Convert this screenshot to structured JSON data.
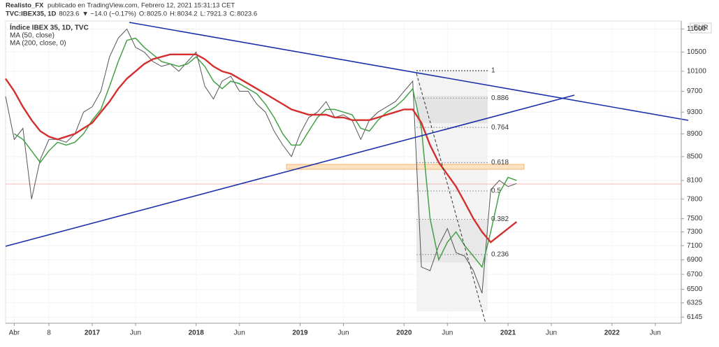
{
  "header": {
    "author": "Realisto_FX",
    "published": "publicado en TradingView.com, Febrero 12, 2021 15:31:13 CET",
    "symbol": "TVC:IBEX35, 1D",
    "last": "8023.6",
    "change": "▼ −14.0 (−0.17%)",
    "ohlc": [
      {
        "label": "O:",
        "value": "8025.0"
      },
      {
        "label": "H:",
        "value": "8034.2"
      },
      {
        "label": "L:",
        "value": "7921.3"
      },
      {
        "label": "C:",
        "value": "8023.6"
      }
    ]
  },
  "chart_data": {
    "type": "line",
    "currency": "EUR",
    "log_scale": true,
    "x": [
      "2016-03",
      "2016-04",
      "2016-05",
      "2016-06",
      "2016-07",
      "2016-08",
      "2016-09",
      "2016-10",
      "2016-11",
      "2016-12",
      "2017-01",
      "2017-02",
      "2017-03",
      "2017-04",
      "2017-05",
      "2017-06",
      "2017-07",
      "2017-08",
      "2017-09",
      "2017-10",
      "2017-11",
      "2017-12",
      "2018-01",
      "2018-02",
      "2018-03",
      "2018-04",
      "2018-05",
      "2018-06",
      "2018-07",
      "2018-08",
      "2018-09",
      "2018-10",
      "2018-11",
      "2018-12",
      "2019-01",
      "2019-02",
      "2019-03",
      "2019-04",
      "2019-05",
      "2019-06",
      "2019-07",
      "2019-08",
      "2019-09",
      "2019-10",
      "2019-11",
      "2019-12",
      "2020-01",
      "2020-02",
      "2020-03",
      "2020-04",
      "2020-05",
      "2020-06",
      "2020-07",
      "2020-08",
      "2020-09",
      "2020-10",
      "2020-11",
      "2020-12",
      "2021-01",
      "2021-02"
    ],
    "series": [
      {
        "name": "Índice IBEX 35, 1D, TVC",
        "color": "#555555",
        "values": [
          9600,
          8800,
          9000,
          7800,
          8450,
          8800,
          8800,
          8750,
          8900,
          9300,
          9400,
          9700,
          10400,
          10800,
          11000,
          10600,
          10500,
          10300,
          10200,
          10250,
          10100,
          10300,
          10500,
          9800,
          9550,
          9900,
          10000,
          9700,
          9700,
          9450,
          9300,
          8950,
          8700,
          8500,
          8900,
          9200,
          9300,
          9500,
          9200,
          9250,
          9150,
          8800,
          9150,
          9300,
          9400,
          9500,
          9700,
          9900,
          6800,
          6750,
          7100,
          7350,
          7000,
          6950,
          6750,
          6450,
          7950,
          8100,
          8000,
          8050
        ]
      },
      {
        "name": "MA (50, close)",
        "color": "#43a047",
        "values": [
          null,
          8900,
          8800,
          8600,
          8400,
          8600,
          8750,
          8700,
          8750,
          8900,
          9150,
          9350,
          9800,
          10300,
          10750,
          10800,
          10600,
          10450,
          10300,
          10250,
          10200,
          10250,
          10400,
          10200,
          9900,
          9750,
          9900,
          9850,
          9750,
          9650,
          9450,
          9200,
          8900,
          8700,
          8700,
          8950,
          9200,
          9350,
          9350,
          9300,
          9250,
          9000,
          8950,
          9150,
          9300,
          9400,
          9550,
          9750,
          9000,
          7500,
          6900,
          7150,
          7300,
          7100,
          6950,
          6800,
          7300,
          7900,
          8150,
          8100
        ]
      },
      {
        "name": "MA (200, close, 0)",
        "color": "#d32f2f",
        "values": [
          9950,
          9700,
          9400,
          9150,
          8950,
          8850,
          8800,
          8850,
          8900,
          9000,
          9100,
          9300,
          9500,
          9750,
          9950,
          10100,
          10250,
          10350,
          10400,
          10450,
          10450,
          10450,
          10450,
          10350,
          10200,
          10100,
          10050,
          9950,
          9850,
          9750,
          9650,
          9550,
          9450,
          9350,
          9300,
          9250,
          9250,
          9250,
          9200,
          9200,
          9150,
          9150,
          9150,
          9200,
          9250,
          9300,
          9350,
          9350,
          9100,
          8700,
          8400,
          8200,
          8000,
          7750,
          7500,
          7300,
          7150,
          7250,
          7350,
          7450
        ]
      }
    ],
    "xlim": [
      "2016-03",
      "2022-09"
    ],
    "xticks": [
      {
        "value": "2016-04",
        "label": "Abr"
      },
      {
        "value": "2016-08",
        "label": "8"
      },
      {
        "value": "2017-01",
        "label": "2017"
      },
      {
        "value": "2017-06",
        "label": "Jun"
      },
      {
        "value": "2018-01",
        "label": "2018"
      },
      {
        "value": "2018-06",
        "label": "Jun"
      },
      {
        "value": "2019-01",
        "label": "2019"
      },
      {
        "value": "2019-06",
        "label": "Jun"
      },
      {
        "value": "2020-01",
        "label": "2020"
      },
      {
        "value": "2020-06",
        "label": "Jun"
      },
      {
        "value": "2021-01",
        "label": "2021"
      },
      {
        "value": "2021-06",
        "label": "Jun"
      },
      {
        "value": "2022-01",
        "label": "2022"
      },
      {
        "value": "2022-06",
        "label": "Jun"
      }
    ],
    "ylim": [
      6070,
      11180
    ],
    "yticks": [
      6145,
      6325,
      6500,
      6700,
      6900,
      7100,
      7300,
      7500,
      7800,
      8100,
      8500,
      8900,
      9300,
      9700,
      10100,
      10500,
      11000
    ],
    "fib_levels": [
      1,
      0.886,
      0.764,
      0.618,
      0.5,
      0.382,
      0.236
    ]
  }
}
